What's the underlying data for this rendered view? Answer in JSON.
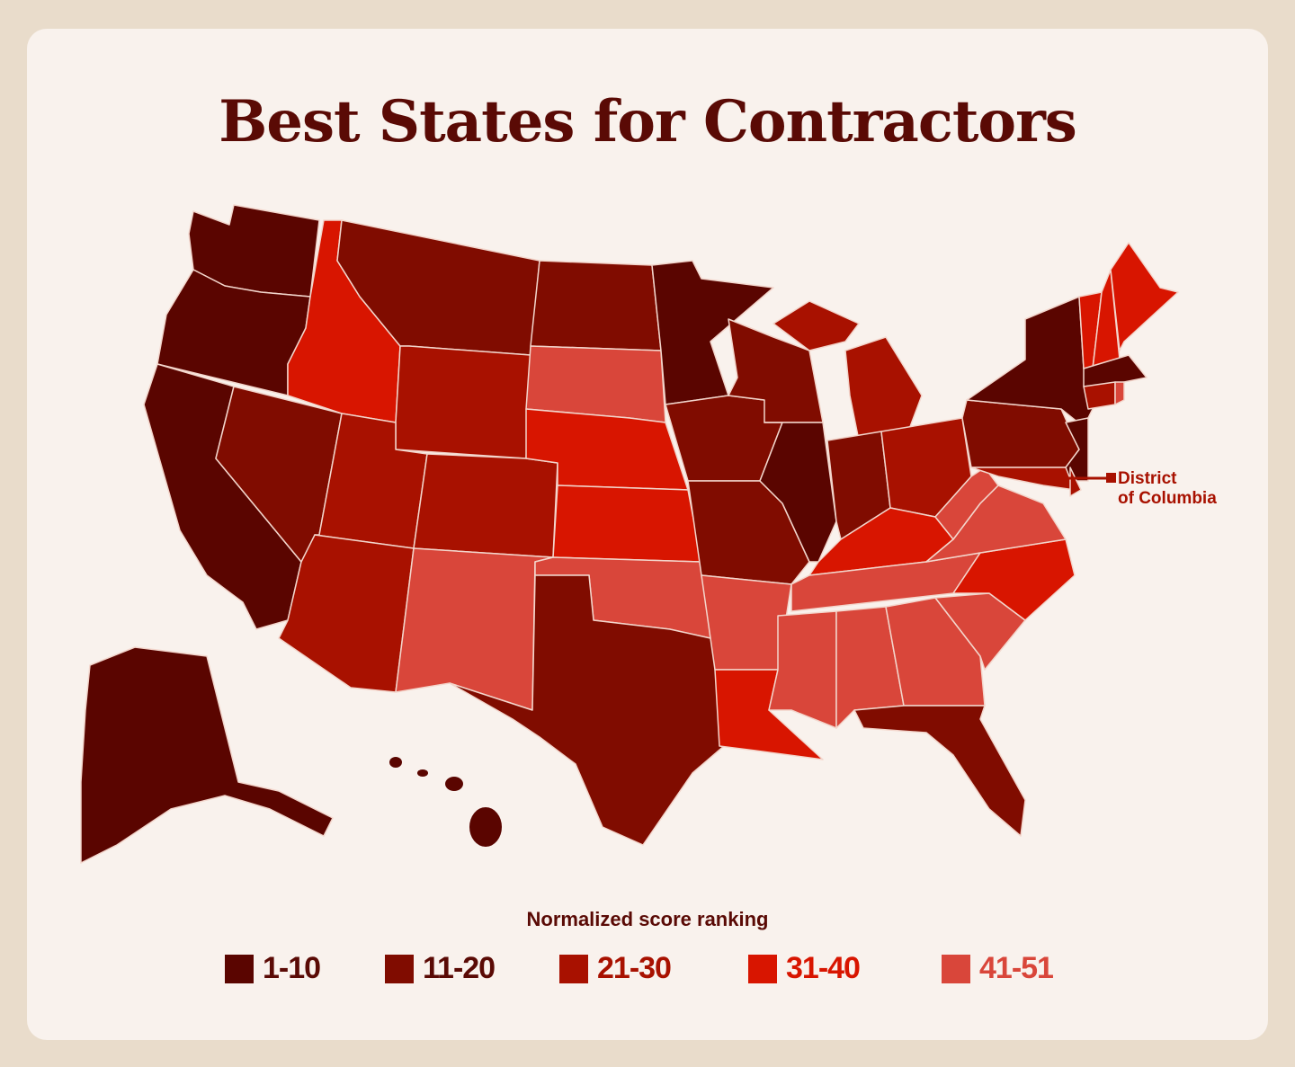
{
  "title": "Best States for Contractors",
  "legend": {
    "title": "Normalized score ranking",
    "categories": [
      {
        "label": "1-10",
        "color": "#5a0500"
      },
      {
        "label": "11-20",
        "color": "#800c00"
      },
      {
        "label": "21-30",
        "color": "#a81100"
      },
      {
        "label": "31-40",
        "color": "#d81500"
      },
      {
        "label": "41-51",
        "color": "#d9463a"
      }
    ]
  },
  "annotation": {
    "line1": "District",
    "line2": "of Columbia"
  },
  "background_color": "#f9f2ed",
  "state_ranking_category": {
    "WA": "1-10",
    "OR": "1-10",
    "CA": "1-10",
    "MN": "1-10",
    "IL": "1-10",
    "NY": "1-10",
    "MA": "1-10",
    "NJ": "1-10",
    "AK": "1-10",
    "HI": "1-10",
    "MT": "11-20",
    "ND": "11-20",
    "NV": "11-20",
    "TX": "11-20",
    "MO": "11-20",
    "WI": "11-20",
    "IN": "11-20",
    "PA": "11-20",
    "FL": "11-20",
    "IA": "11-20",
    "WY": "21-30",
    "UT": "21-30",
    "CO": "21-30",
    "AZ": "21-30",
    "MI": "21-30",
    "OH": "21-30",
    "CT": "21-30",
    "DE": "21-30",
    "MD": "21-30",
    "DC": "21-30",
    "ID": "31-40",
    "NE": "31-40",
    "KS": "31-40",
    "KY": "31-40",
    "NC": "31-40",
    "LA": "31-40",
    "VT": "31-40",
    "NH": "31-40",
    "ME": "31-40",
    "SD": "41-51",
    "NM": "41-51",
    "OK": "41-51",
    "AR": "41-51",
    "MS": "41-51",
    "AL": "41-51",
    "GA": "41-51",
    "SC": "41-51",
    "TN": "41-51",
    "VA": "41-51",
    "WV": "41-51",
    "RI": "41-51"
  }
}
